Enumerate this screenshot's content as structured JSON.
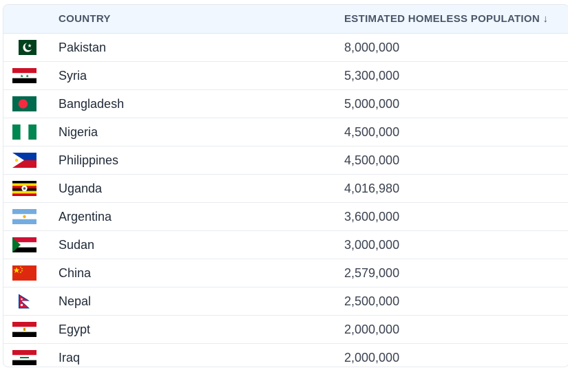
{
  "table": {
    "columns": {
      "country": "COUNTRY",
      "population": "ESTIMATED HOMELESS POPULATION ↓"
    },
    "sort": {
      "column": "population",
      "direction": "descending"
    },
    "rows": [
      {
        "country": "Pakistan",
        "population": "8,000,000",
        "flag": "pakistan-flag"
      },
      {
        "country": "Syria",
        "population": "5,300,000",
        "flag": "syria-flag"
      },
      {
        "country": "Bangladesh",
        "population": "5,000,000",
        "flag": "bangladesh-flag"
      },
      {
        "country": "Nigeria",
        "population": "4,500,000",
        "flag": "nigeria-flag"
      },
      {
        "country": "Philippines",
        "population": "4,500,000",
        "flag": "philippines-flag"
      },
      {
        "country": "Uganda",
        "population": "4,016,980",
        "flag": "uganda-flag"
      },
      {
        "country": "Argentina",
        "population": "3,600,000",
        "flag": "argentina-flag"
      },
      {
        "country": "Sudan",
        "population": "3,000,000",
        "flag": "sudan-flag"
      },
      {
        "country": "China",
        "population": "2,579,000",
        "flag": "china-flag"
      },
      {
        "country": "Nepal",
        "population": "2,500,000",
        "flag": "nepal-flag"
      },
      {
        "country": "Egypt",
        "population": "2,000,000",
        "flag": "egypt-flag"
      },
      {
        "country": "Iraq",
        "population": "2,000,000",
        "flag": "iraq-flag"
      }
    ]
  }
}
